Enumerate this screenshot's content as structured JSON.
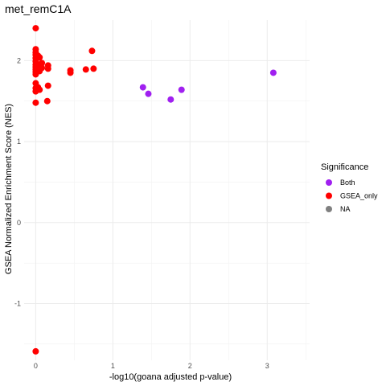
{
  "chart_data": {
    "type": "scatter",
    "title": "met_remC1A",
    "xlabel": "-log10(goana adjusted p-value)",
    "ylabel": "GSEA Normalized Enrichment Score (NES)",
    "xlim": [
      -0.15,
      3.55
    ],
    "ylim": [
      -1.7,
      2.5
    ],
    "x_ticks": [
      0,
      1,
      2,
      3
    ],
    "y_ticks": [
      -1,
      0,
      1,
      2
    ],
    "grid": true,
    "legend": {
      "title": "Significance",
      "position": "right",
      "entries": [
        {
          "label": "Both",
          "color": "#a020f0"
        },
        {
          "label": "GSEA_only",
          "color": "#ff0000"
        },
        {
          "label": "NA",
          "color": "#808080"
        }
      ]
    },
    "series": [
      {
        "name": "Both",
        "color": "#a020f0",
        "points": [
          {
            "x": 1.39,
            "y": 1.67
          },
          {
            "x": 1.46,
            "y": 1.59
          },
          {
            "x": 1.75,
            "y": 1.52
          },
          {
            "x": 1.89,
            "y": 1.64
          },
          {
            "x": 3.08,
            "y": 1.85
          }
        ]
      },
      {
        "name": "GSEA_only",
        "color": "#ff0000",
        "points": [
          {
            "x": 0.0,
            "y": 2.4
          },
          {
            "x": 0.0,
            "y": 2.14
          },
          {
            "x": 0.0,
            "y": 2.1
          },
          {
            "x": 0.0,
            "y": 2.07
          },
          {
            "x": 0.0,
            "y": 2.03
          },
          {
            "x": 0.0,
            "y": 1.99
          },
          {
            "x": 0.0,
            "y": 1.95
          },
          {
            "x": 0.0,
            "y": 1.92
          },
          {
            "x": 0.0,
            "y": 1.89
          },
          {
            "x": 0.0,
            "y": 1.86
          },
          {
            "x": 0.0,
            "y": 1.83
          },
          {
            "x": 0.0,
            "y": 1.72
          },
          {
            "x": 0.0,
            "y": 1.66
          },
          {
            "x": 0.0,
            "y": 1.62
          },
          {
            "x": 0.0,
            "y": 1.48
          },
          {
            "x": 0.03,
            "y": 2.06
          },
          {
            "x": 0.03,
            "y": 1.95
          },
          {
            "x": 0.03,
            "y": 1.67
          },
          {
            "x": 0.05,
            "y": 2.04
          },
          {
            "x": 0.05,
            "y": 1.87
          },
          {
            "x": 0.05,
            "y": 1.64
          },
          {
            "x": 0.08,
            "y": 1.97
          },
          {
            "x": 0.08,
            "y": 1.91
          },
          {
            "x": 0.16,
            "y": 1.94
          },
          {
            "x": 0.16,
            "y": 1.9
          },
          {
            "x": 0.16,
            "y": 1.69
          },
          {
            "x": 0.15,
            "y": 1.5
          },
          {
            "x": 0.45,
            "y": 1.88
          },
          {
            "x": 0.45,
            "y": 1.85
          },
          {
            "x": 0.65,
            "y": 1.89
          },
          {
            "x": 0.73,
            "y": 2.12
          },
          {
            "x": 0.75,
            "y": 1.9
          },
          {
            "x": 0.0,
            "y": -1.59
          }
        ]
      }
    ]
  }
}
